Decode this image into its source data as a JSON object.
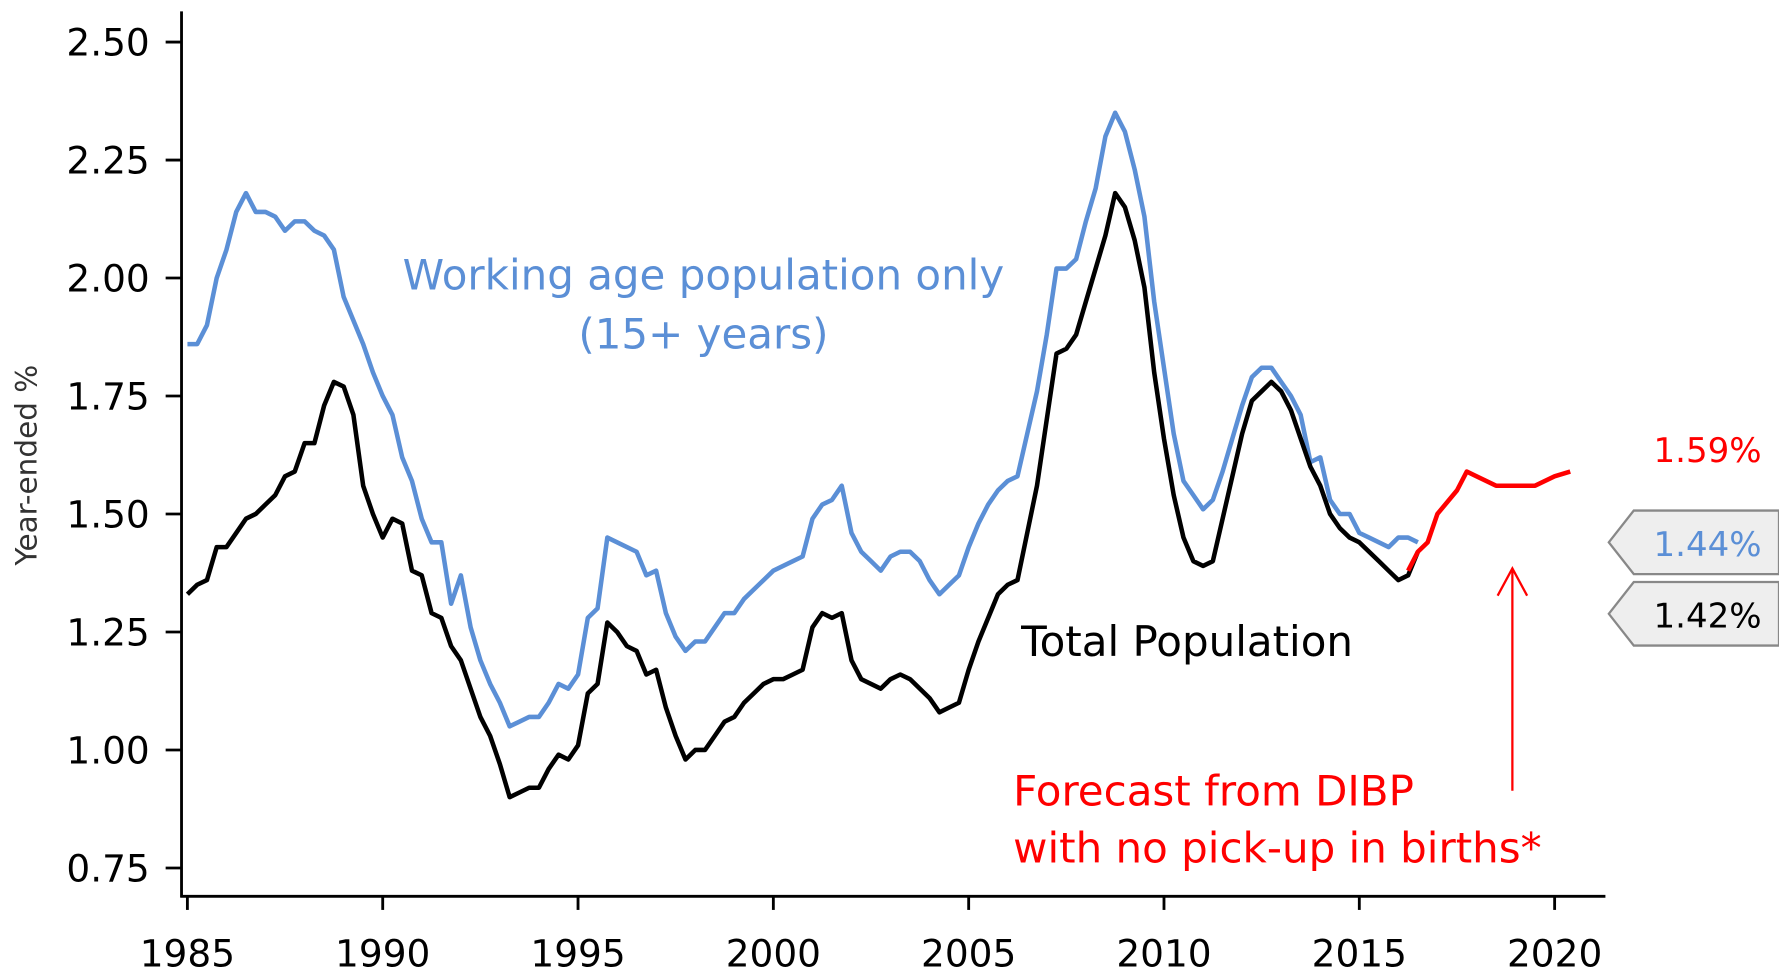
{
  "chart_data": {
    "type": "line",
    "y_label": "Year-ended %",
    "xlim": [
      1984.85,
      2021.3
    ],
    "ylim": [
      0.69,
      2.565
    ],
    "xticks": [
      1985,
      1990,
      1995,
      2000,
      2005,
      2010,
      2015,
      2020
    ],
    "yticks": [
      0.75,
      {
        "value": 1.0,
        "label": "1.00"
      },
      1.25,
      {
        "value": 1.5,
        "label": "1.50"
      },
      1.75,
      {
        "value": 2.0,
        "label": "2.00"
      },
      2.25,
      {
        "value": 2.5,
        "label": "2.50"
      }
    ],
    "series": [
      {
        "name": "Working age population only (15+ years)",
        "color": "#5b8fd6",
        "end_label": "1.44%",
        "x": [
          1985,
          1985.25,
          1985.5,
          1985.75,
          1986,
          1986.25,
          1986.5,
          1986.75,
          1987,
          1987.25,
          1987.5,
          1987.75,
          1988,
          1988.25,
          1988.5,
          1988.75,
          1989,
          1989.25,
          1989.5,
          1989.75,
          1990,
          1990.25,
          1990.5,
          1990.75,
          1991,
          1991.25,
          1991.5,
          1991.75,
          1992,
          1992.25,
          1992.5,
          1992.75,
          1993,
          1993.25,
          1993.5,
          1993.75,
          1994,
          1994.25,
          1994.5,
          1994.75,
          1995,
          1995.25,
          1995.5,
          1995.75,
          1996,
          1996.25,
          1996.5,
          1996.75,
          1997,
          1997.25,
          1997.5,
          1997.75,
          1998,
          1998.25,
          1998.5,
          1998.75,
          1999,
          1999.25,
          1999.5,
          1999.75,
          2000,
          2000.25,
          2000.5,
          2000.75,
          2001,
          2001.25,
          2001.5,
          2001.75,
          2002,
          2002.25,
          2002.5,
          2002.75,
          2003,
          2003.25,
          2003.5,
          2003.75,
          2004,
          2004.25,
          2004.5,
          2004.75,
          2005,
          2005.25,
          2005.5,
          2005.75,
          2006,
          2006.25,
          2006.5,
          2006.75,
          2007,
          2007.25,
          2007.5,
          2007.75,
          2008,
          2008.25,
          2008.5,
          2008.75,
          2009,
          2009.25,
          2009.5,
          2009.75,
          2010,
          2010.25,
          2010.5,
          2010.75,
          2011,
          2011.25,
          2011.5,
          2011.75,
          2012,
          2012.25,
          2012.5,
          2012.75,
          2013,
          2013.25,
          2013.5,
          2013.75,
          2014,
          2014.25,
          2014.5,
          2014.75,
          2015,
          2015.25,
          2015.5,
          2015.75,
          2016,
          2016.25,
          2016.5
        ],
        "values": [
          1.86,
          1.86,
          1.9,
          2.0,
          2.06,
          2.14,
          2.18,
          2.14,
          2.14,
          2.13,
          2.1,
          2.12,
          2.12,
          2.1,
          2.09,
          2.06,
          1.96,
          1.91,
          1.86,
          1.8,
          1.75,
          1.71,
          1.62,
          1.57,
          1.49,
          1.44,
          1.44,
          1.31,
          1.37,
          1.26,
          1.19,
          1.14,
          1.1,
          1.05,
          1.06,
          1.07,
          1.07,
          1.1,
          1.14,
          1.13,
          1.16,
          1.28,
          1.3,
          1.45,
          1.44,
          1.43,
          1.42,
          1.37,
          1.38,
          1.29,
          1.24,
          1.21,
          1.23,
          1.23,
          1.26,
          1.29,
          1.29,
          1.32,
          1.34,
          1.36,
          1.38,
          1.39,
          1.4,
          1.41,
          1.49,
          1.52,
          1.53,
          1.56,
          1.46,
          1.42,
          1.4,
          1.38,
          1.41,
          1.42,
          1.42,
          1.4,
          1.36,
          1.33,
          1.35,
          1.37,
          1.43,
          1.48,
          1.52,
          1.55,
          1.57,
          1.58,
          1.67,
          1.76,
          1.88,
          2.02,
          2.02,
          2.04,
          2.12,
          2.19,
          2.3,
          2.35,
          2.31,
          2.23,
          2.13,
          1.95,
          1.81,
          1.67,
          1.57,
          1.54,
          1.51,
          1.53,
          1.59,
          1.66,
          1.73,
          1.79,
          1.81,
          1.81,
          1.78,
          1.75,
          1.71,
          1.61,
          1.62,
          1.53,
          1.5,
          1.5,
          1.46,
          1.45,
          1.44,
          1.43,
          1.45,
          1.45,
          1.44
        ]
      },
      {
        "name": "Total Population",
        "color": "#000000",
        "end_label": "1.42%",
        "x": [
          1985,
          1985.25,
          1985.5,
          1985.75,
          1986,
          1986.25,
          1986.5,
          1986.75,
          1987,
          1987.25,
          1987.5,
          1987.75,
          1988,
          1988.25,
          1988.5,
          1988.75,
          1989,
          1989.25,
          1989.5,
          1989.75,
          1990,
          1990.25,
          1990.5,
          1990.75,
          1991,
          1991.25,
          1991.5,
          1991.75,
          1992,
          1992.25,
          1992.5,
          1992.75,
          1993,
          1993.25,
          1993.5,
          1993.75,
          1994,
          1994.25,
          1994.5,
          1994.75,
          1995,
          1995.25,
          1995.5,
          1995.75,
          1996,
          1996.25,
          1996.5,
          1996.75,
          1997,
          1997.25,
          1997.5,
          1997.75,
          1998,
          1998.25,
          1998.5,
          1998.75,
          1999,
          1999.25,
          1999.5,
          1999.75,
          2000,
          2000.25,
          2000.5,
          2000.75,
          2001,
          2001.25,
          2001.5,
          2001.75,
          2002,
          2002.25,
          2002.5,
          2002.75,
          2003,
          2003.25,
          2003.5,
          2003.75,
          2004,
          2004.25,
          2004.5,
          2004.75,
          2005,
          2005.25,
          2005.5,
          2005.75,
          2006,
          2006.25,
          2006.5,
          2006.75,
          2007,
          2007.25,
          2007.5,
          2007.75,
          2008,
          2008.25,
          2008.5,
          2008.75,
          2009,
          2009.25,
          2009.5,
          2009.75,
          2010,
          2010.25,
          2010.5,
          2010.75,
          2011,
          2011.25,
          2011.5,
          2011.75,
          2012,
          2012.25,
          2012.5,
          2012.75,
          2013,
          2013.25,
          2013.5,
          2013.75,
          2014,
          2014.25,
          2014.5,
          2014.75,
          2015,
          2015.25,
          2015.5,
          2015.75,
          2016,
          2016.25,
          2016.5
        ],
        "values": [
          1.33,
          1.35,
          1.36,
          1.43,
          1.43,
          1.46,
          1.49,
          1.5,
          1.52,
          1.54,
          1.58,
          1.59,
          1.65,
          1.65,
          1.73,
          1.78,
          1.77,
          1.71,
          1.56,
          1.5,
          1.45,
          1.49,
          1.48,
          1.38,
          1.37,
          1.29,
          1.28,
          1.22,
          1.19,
          1.13,
          1.07,
          1.03,
          0.97,
          0.9,
          0.91,
          0.92,
          0.92,
          0.96,
          0.99,
          0.98,
          1.01,
          1.12,
          1.14,
          1.27,
          1.25,
          1.22,
          1.21,
          1.16,
          1.17,
          1.09,
          1.03,
          0.98,
          1.0,
          1.0,
          1.03,
          1.06,
          1.07,
          1.1,
          1.12,
          1.14,
          1.15,
          1.15,
          1.16,
          1.17,
          1.26,
          1.29,
          1.28,
          1.29,
          1.19,
          1.15,
          1.14,
          1.13,
          1.15,
          1.16,
          1.15,
          1.13,
          1.11,
          1.08,
          1.09,
          1.1,
          1.17,
          1.23,
          1.28,
          1.33,
          1.35,
          1.36,
          1.46,
          1.56,
          1.7,
          1.84,
          1.85,
          1.88,
          1.95,
          2.02,
          2.09,
          2.18,
          2.15,
          2.08,
          1.98,
          1.8,
          1.66,
          1.54,
          1.45,
          1.4,
          1.39,
          1.4,
          1.49,
          1.58,
          1.67,
          1.74,
          1.76,
          1.78,
          1.76,
          1.72,
          1.66,
          1.6,
          1.56,
          1.5,
          1.47,
          1.45,
          1.44,
          1.42,
          1.4,
          1.38,
          1.36,
          1.37,
          1.42
        ]
      },
      {
        "name": "Forecast from DIBP with no pick-up in births*",
        "color": "#ff0000",
        "end_label": "1.59%",
        "x": [
          2016.25,
          2016.5,
          2016.75,
          2017,
          2017.5,
          2017.75,
          2018,
          2018.5,
          2019,
          2019.5,
          2020,
          2020.4
        ],
        "values": [
          1.38,
          1.42,
          1.44,
          1.5,
          1.55,
          1.59,
          1.58,
          1.56,
          1.56,
          1.56,
          1.58,
          1.59
        ]
      }
    ],
    "annotations": [
      {
        "text": "Working age population only",
        "color": "#5b8fd6"
      },
      {
        "text": "(15+ years)",
        "color": "#5b8fd6"
      },
      {
        "text": "Total Population",
        "color": "#000000"
      },
      {
        "text": "Forecast from DIBP",
        "color": "#ff0000"
      },
      {
        "text": "with no pick-up in births*",
        "color": "#ff0000"
      }
    ]
  }
}
